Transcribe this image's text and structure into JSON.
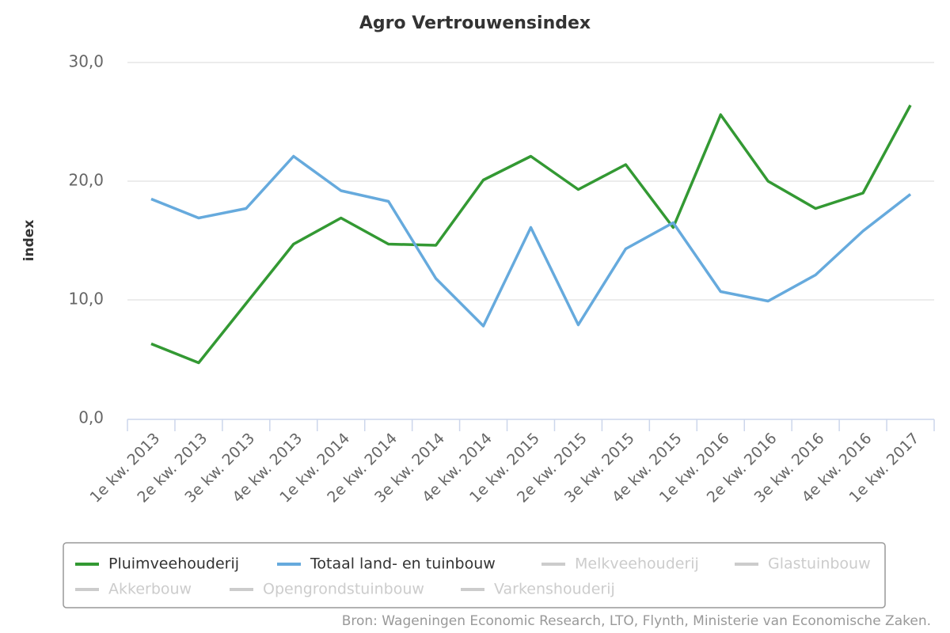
{
  "chart_data": {
    "type": "line",
    "title": "Agro Vertrouwensindex",
    "y_axis_label": "index",
    "categories": [
      "1e kw. 2013",
      "2e kw. 2013",
      "3e kw. 2013",
      "4e kw. 2013",
      "1e kw. 2014",
      "2e kw. 2014",
      "3e kw. 2014",
      "4e kw. 2014",
      "1e kw. 2015",
      "2e kw. 2015",
      "3e kw. 2015",
      "4e kw. 2015",
      "1e kw. 2016",
      "2e kw. 2016",
      "3e kw. 2016",
      "4e kw. 2016",
      "1e kw. 2017"
    ],
    "series": [
      {
        "name": "Pluimveehouderij",
        "color": "#339933",
        "values": [
          6.3,
          4.7,
          9.7,
          14.7,
          16.9,
          14.7,
          14.6,
          20.1,
          22.1,
          19.3,
          21.4,
          16.1,
          25.6,
          20.0,
          17.7,
          19.0,
          26.4
        ]
      },
      {
        "name": "Totaal land- en tuinbouw",
        "color": "#66aadd",
        "values": [
          18.5,
          16.9,
          17.7,
          22.1,
          19.2,
          18.3,
          11.8,
          7.8,
          16.1,
          7.9,
          14.3,
          16.5,
          10.7,
          9.9,
          12.1,
          15.8,
          18.9
        ]
      },
      {
        "name": "Melkveehouderij",
        "color": "#cccccc",
        "visible": false
      },
      {
        "name": "Glastuinbouw",
        "color": "#cccccc",
        "visible": false
      },
      {
        "name": "Akkerbouw",
        "color": "#cccccc",
        "visible": false
      },
      {
        "name": "Opengrondstuinbouw",
        "color": "#cccccc",
        "visible": false
      },
      {
        "name": "Varkenshouderij",
        "color": "#cccccc",
        "visible": false
      }
    ],
    "ylim": [
      0,
      30
    ],
    "yticks": [
      {
        "value": 0,
        "label": "0,0"
      },
      {
        "value": 10,
        "label": "10,0"
      },
      {
        "value": 20,
        "label": "20,0"
      },
      {
        "value": 30,
        "label": "30,0"
      }
    ],
    "grid": true,
    "legend": "bottom",
    "source": "Bron: Wageningen Economic Research, LTO, Flynth, Ministerie van Economische Zaken."
  }
}
